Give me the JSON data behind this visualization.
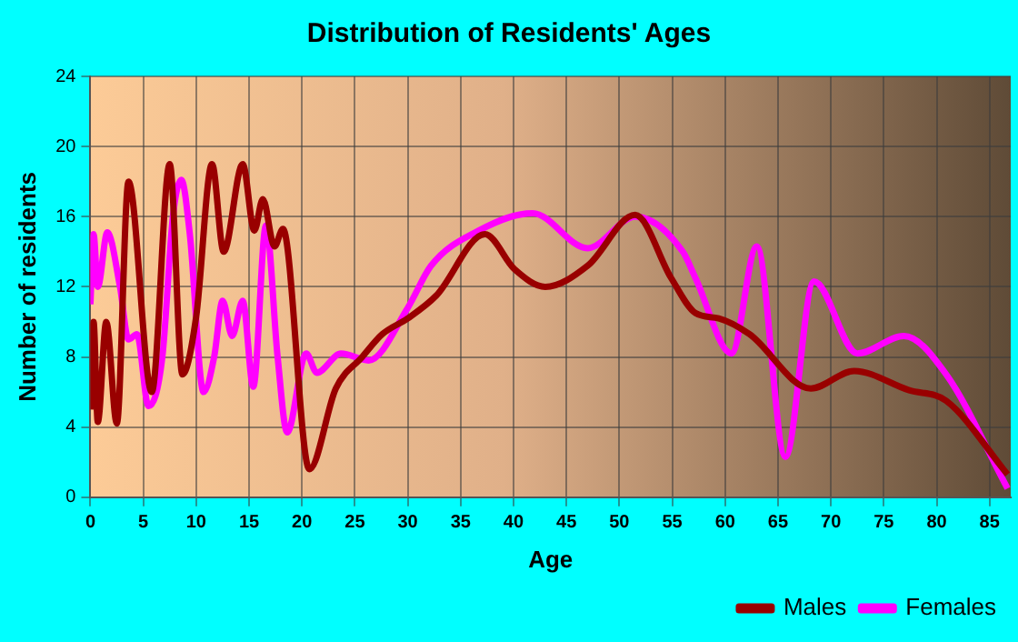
{
  "chart_data": {
    "type": "line",
    "title": "Distribution of Residents' Ages",
    "xlabel": "Age",
    "ylabel": "Number of residents",
    "xlim": [
      0,
      87
    ],
    "xticks": [
      0,
      5,
      10,
      15,
      20,
      25,
      30,
      35,
      40,
      45,
      50,
      55,
      60,
      65,
      70,
      75,
      80,
      85
    ],
    "ylim": [
      0,
      24
    ],
    "yticks": [
      0,
      4,
      8,
      12,
      16,
      20,
      24
    ],
    "grid": true,
    "legend": "bottom right",
    "marker": "none",
    "line_style": "solid",
    "series": [
      {
        "name": "Males",
        "color": "#990000",
        "x": [
          0,
          0.3,
          0.7,
          1.5,
          2.5,
          3.6,
          5.8,
          7.5,
          8.7,
          10,
          11.5,
          12.6,
          14.4,
          15.5,
          16.3,
          17.4,
          18.2,
          20.7,
          23.2,
          25.7,
          27.6,
          30,
          32.7,
          37.3,
          40.1,
          43,
          47,
          51.5,
          54.9,
          57.2,
          59.4,
          62.3,
          68.1,
          72.2,
          77.4,
          80.9,
          86.7
        ],
        "values": [
          5,
          10,
          4.3,
          10,
          4.2,
          18,
          6,
          19,
          7,
          10.3,
          19,
          14,
          19,
          15.2,
          17,
          14.3,
          15.3,
          1.6,
          6.2,
          8,
          9.3,
          10.2,
          11.5,
          15,
          13,
          12,
          13.2,
          16.1,
          12.5,
          10.5,
          10.2,
          9.3,
          6.2,
          7.2,
          6.1,
          5.5,
          1.3
        ]
      },
      {
        "name": "Females",
        "color": "#ff00ff",
        "x": [
          0,
          0.3,
          0.7,
          1.6,
          2.8,
          3.6,
          4.4,
          5.5,
          6.8,
          7.8,
          8.6,
          9.4,
          10.7,
          11.7,
          12.5,
          13.4,
          14.4,
          15.4,
          16.6,
          17.7,
          18.6,
          20.4,
          21.4,
          23.7,
          26.3,
          30,
          32.2,
          36.7,
          41.8,
          47,
          51.5,
          56,
          57.2,
          60.6,
          63,
          65.7,
          68.4,
          72.5,
          76.9,
          80.9,
          86.7
        ],
        "values": [
          11,
          15,
          12,
          15.1,
          12,
          9,
          9.3,
          5.2,
          8,
          16,
          18.1,
          15,
          6,
          8,
          11.2,
          9.2,
          11.2,
          6.3,
          15.5,
          8,
          3.7,
          8.2,
          7.1,
          8.2,
          7.8,
          10.8,
          13.2,
          15.2,
          16.2,
          14.2,
          16,
          14,
          12.5,
          8.2,
          14.3,
          2.3,
          12.3,
          8.2,
          9.2,
          7,
          0.5
        ]
      }
    ]
  }
}
